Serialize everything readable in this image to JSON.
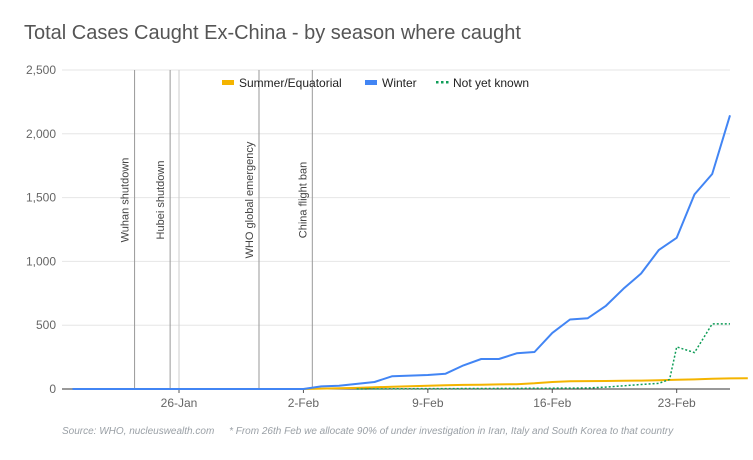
{
  "chart_data": {
    "type": "line",
    "title": "Total Cases Caught Ex-China - by season where caught",
    "xlabel": "",
    "ylabel": "",
    "ylim": [
      0,
      2500
    ],
    "y_ticks": [
      "0",
      "500",
      "1,000",
      "1,500",
      "2,000",
      "2,500"
    ],
    "y_tick_values": [
      0,
      500,
      1000,
      1500,
      2000,
      2500
    ],
    "x_tick_labels": [
      "26-Jan",
      "2-Feb",
      "9-Feb",
      "16-Feb",
      "23-Feb"
    ],
    "x_tick_dates": [
      "2020-01-26",
      "2020-02-02",
      "2020-02-09",
      "2020-02-16",
      "2020-02-23"
    ],
    "grid": true,
    "legend_position": "top",
    "legend": [
      "Summer/Equatorial",
      "Winter",
      "Not yet known"
    ],
    "series": [
      {
        "name": "Summer/Equatorial",
        "color": "#f4b400",
        "style": "solid",
        "points": [
          [
            "2020-01-20",
            0
          ],
          [
            "2020-01-21",
            0
          ],
          [
            "2020-01-22",
            0
          ],
          [
            "2020-01-23",
            0
          ],
          [
            "2020-01-24",
            0
          ],
          [
            "2020-01-25",
            0
          ],
          [
            "2020-01-26",
            0
          ],
          [
            "2020-01-27",
            0
          ],
          [
            "2020-01-28",
            0
          ],
          [
            "2020-01-29",
            0
          ],
          [
            "2020-01-30",
            0
          ],
          [
            "2020-01-31",
            0
          ],
          [
            "2020-02-01",
            0
          ],
          [
            "2020-02-02",
            0
          ],
          [
            "2020-02-03",
            3
          ],
          [
            "2020-02-04",
            6
          ],
          [
            "2020-02-05",
            9
          ],
          [
            "2020-02-06",
            13
          ],
          [
            "2020-02-07",
            18
          ],
          [
            "2020-02-08",
            22
          ],
          [
            "2020-02-09",
            26
          ],
          [
            "2020-02-10",
            30
          ],
          [
            "2020-02-11",
            32
          ],
          [
            "2020-02-12",
            34
          ],
          [
            "2020-02-13",
            36
          ],
          [
            "2020-02-14",
            38
          ],
          [
            "2020-02-15",
            45
          ],
          [
            "2020-02-16",
            55
          ],
          [
            "2020-02-17",
            60
          ],
          [
            "2020-02-18",
            62
          ],
          [
            "2020-02-19",
            63
          ],
          [
            "2020-02-20",
            64
          ],
          [
            "2020-02-21",
            66
          ],
          [
            "2020-02-22",
            68
          ],
          [
            "2020-02-23",
            72
          ],
          [
            "2020-02-24",
            75
          ],
          [
            "2020-02-25",
            80
          ],
          [
            "2020-02-26",
            83
          ],
          [
            "2020-02-27",
            85
          ]
        ]
      },
      {
        "name": "Winter",
        "color": "#4285f4",
        "style": "solid",
        "points": [
          [
            "2020-01-20",
            0
          ],
          [
            "2020-01-21",
            0
          ],
          [
            "2020-01-22",
            0
          ],
          [
            "2020-01-23",
            0
          ],
          [
            "2020-01-24",
            0
          ],
          [
            "2020-01-25",
            0
          ],
          [
            "2020-01-26",
            0
          ],
          [
            "2020-01-27",
            0
          ],
          [
            "2020-01-28",
            0
          ],
          [
            "2020-01-29",
            0
          ],
          [
            "2020-01-30",
            0
          ],
          [
            "2020-01-31",
            0
          ],
          [
            "2020-02-01",
            0
          ],
          [
            "2020-02-02",
            0
          ],
          [
            "2020-02-03",
            20
          ],
          [
            "2020-02-04",
            25
          ],
          [
            "2020-02-05",
            40
          ],
          [
            "2020-02-06",
            55
          ],
          [
            "2020-02-07",
            100
          ],
          [
            "2020-02-08",
            105
          ],
          [
            "2020-02-09",
            110
          ],
          [
            "2020-02-10",
            120
          ],
          [
            "2020-02-11",
            185
          ],
          [
            "2020-02-12",
            235
          ],
          [
            "2020-02-13",
            235
          ],
          [
            "2020-02-14",
            280
          ],
          [
            "2020-02-15",
            290
          ],
          [
            "2020-02-16",
            440
          ],
          [
            "2020-02-17",
            545
          ],
          [
            "2020-02-18",
            555
          ],
          [
            "2020-02-19",
            650
          ],
          [
            "2020-02-20",
            785
          ],
          [
            "2020-02-21",
            905
          ],
          [
            "2020-02-22",
            1090
          ],
          [
            "2020-02-23",
            1185
          ],
          [
            "2020-02-24",
            1525
          ],
          [
            "2020-02-25",
            1685
          ],
          [
            "2020-02-26",
            2145
          ]
        ]
      },
      {
        "name": "Not yet known",
        "color": "#0f9d58",
        "style": "dotted",
        "points": [
          [
            "2020-02-05",
            0
          ],
          [
            "2020-02-08",
            2
          ],
          [
            "2020-02-12",
            4
          ],
          [
            "2020-02-16",
            6
          ],
          [
            "2020-02-18",
            8
          ],
          [
            "2020-02-19",
            15
          ],
          [
            "2020-02-20",
            25
          ],
          [
            "2020-02-21",
            35
          ],
          [
            "2020-02-22",
            45
          ],
          [
            "2020-02-22.6",
            75
          ],
          [
            "2020-02-23",
            330
          ],
          [
            "2020-02-24",
            285
          ],
          [
            "2020-02-25",
            510
          ],
          [
            "2020-02-26",
            510
          ]
        ]
      }
    ],
    "annotations": [
      {
        "label": "Wuhan shutdown",
        "date": "2020-01-23"
      },
      {
        "label": "Hubei shutdown",
        "date": "2020-01-25"
      },
      {
        "label": "WHO global emergency",
        "date": "2020-01-30"
      },
      {
        "label": "China flight ban",
        "date": "2020-02-02"
      }
    ]
  },
  "footer": {
    "source": "Source: WHO, nucleuswealth.com",
    "note": "* From 26th Feb we allocate 90% of under investigation in Iran, Italy and South Korea to that country"
  }
}
